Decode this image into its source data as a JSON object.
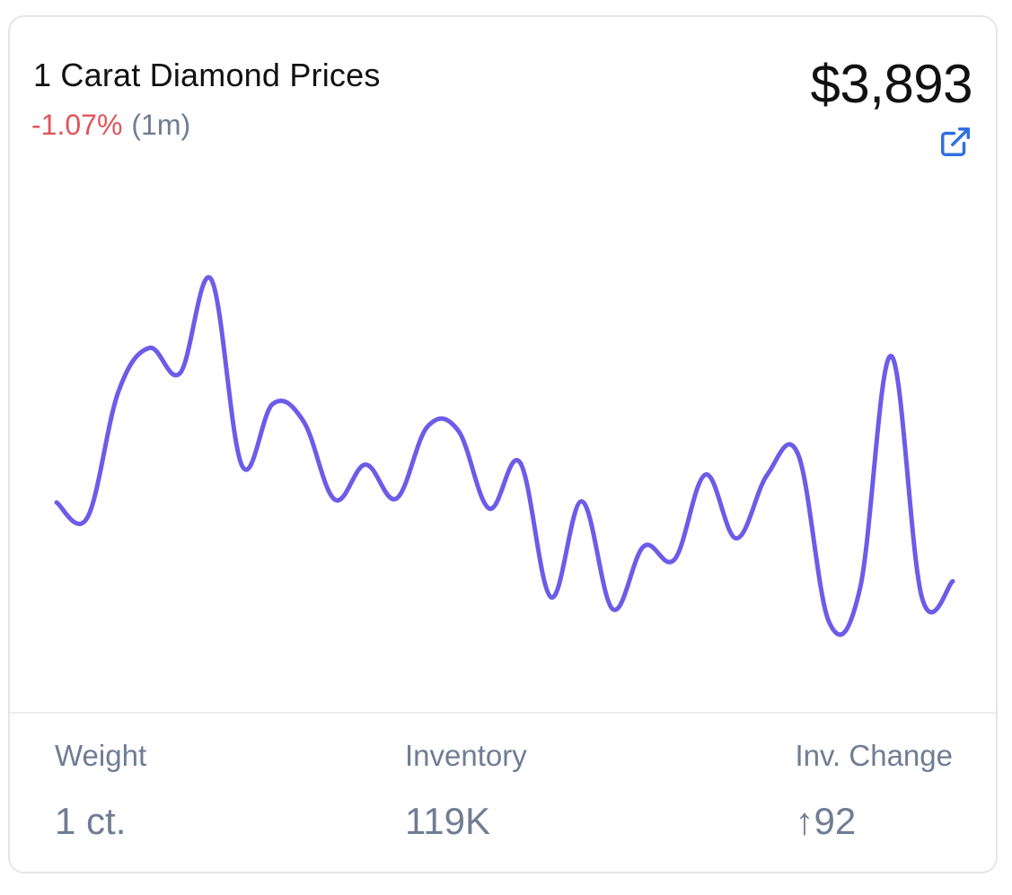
{
  "card": {
    "title": "1 Carat Diamond Prices",
    "change_percent": "-1.07%",
    "change_period": "(1m)",
    "price": "$3,893",
    "external_link_icon": "external-link-icon"
  },
  "colors": {
    "line": "#6c5ce7",
    "negative": "#e0555b",
    "muted": "#6f7d93",
    "link": "#2f6fe0"
  },
  "chart_data": {
    "type": "line",
    "title": "",
    "xlabel": "",
    "ylabel": "",
    "grid": false,
    "legend": "none",
    "series": [
      {
        "values": [
          3953,
          3938,
          4064,
          4108,
          4083,
          4177,
          3990,
          4052,
          4034,
          3956,
          3991,
          3957,
          4029,
          4025,
          3947,
          3993,
          3858,
          3954,
          3846,
          3909,
          3896,
          3981,
          3917,
          3981,
          4001,
          3833,
          3867,
          4100,
          3858,
          3874
        ]
      }
    ]
  },
  "stats": {
    "weight_label": "Weight",
    "weight_value": "1 ct.",
    "inventory_label": "Inventory",
    "inventory_value": "119K",
    "inv_change_label": "Inv. Change",
    "inv_change_value": "↑92"
  }
}
